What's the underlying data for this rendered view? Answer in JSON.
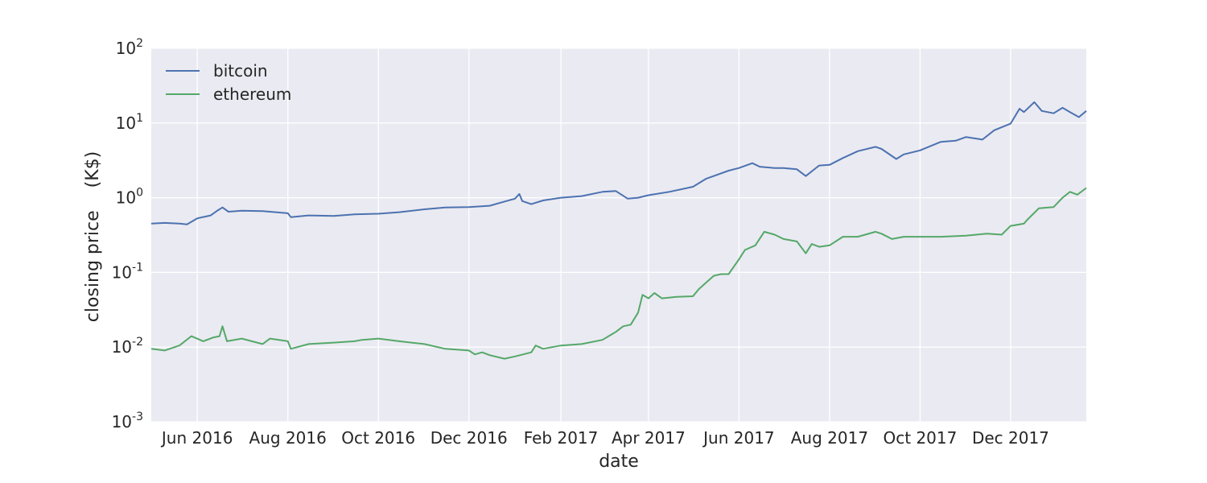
{
  "chart_data": {
    "type": "line",
    "xlabel": "date",
    "ylabel": "closing price    (K$)",
    "yscale": "log",
    "ylim": [
      0.001,
      100
    ],
    "xlim": [
      "2016-05-01",
      "2018-01-21"
    ],
    "grid": true,
    "legend_position": "top-left",
    "x_ticks": [
      {
        "date": "2016-06-01",
        "label": "Jun 2016"
      },
      {
        "date": "2016-08-01",
        "label": "Aug 2016"
      },
      {
        "date": "2016-10-01",
        "label": "Oct 2016"
      },
      {
        "date": "2016-12-01",
        "label": "Dec 2016"
      },
      {
        "date": "2017-02-01",
        "label": "Feb 2017"
      },
      {
        "date": "2017-04-01",
        "label": "Apr 2017"
      },
      {
        "date": "2017-06-01",
        "label": "Jun 2017"
      },
      {
        "date": "2017-08-01",
        "label": "Aug 2017"
      },
      {
        "date": "2017-10-01",
        "label": "Oct 2017"
      },
      {
        "date": "2017-12-01",
        "label": "Dec 2017"
      }
    ],
    "y_ticks": [
      {
        "value": 0.001,
        "base": "10",
        "exp": "-3"
      },
      {
        "value": 0.01,
        "base": "10",
        "exp": "-2"
      },
      {
        "value": 0.1,
        "base": "10",
        "exp": "-1"
      },
      {
        "value": 1,
        "base": "10",
        "exp": "0"
      },
      {
        "value": 10,
        "base": "10",
        "exp": "1"
      },
      {
        "value": 100,
        "base": "10",
        "exp": "2"
      }
    ],
    "series": [
      {
        "name": "bitcoin",
        "color": "#4c72b0",
        "x": [
          "2016-05-01",
          "2016-05-10",
          "2016-05-20",
          "2016-05-25",
          "2016-06-01",
          "2016-06-10",
          "2016-06-15",
          "2016-06-18",
          "2016-06-22",
          "2016-07-01",
          "2016-07-15",
          "2016-08-01",
          "2016-08-03",
          "2016-08-15",
          "2016-09-01",
          "2016-09-15",
          "2016-10-01",
          "2016-10-15",
          "2016-11-01",
          "2016-11-15",
          "2016-12-01",
          "2016-12-15",
          "2017-01-01",
          "2017-01-04",
          "2017-01-06",
          "2017-01-12",
          "2017-01-20",
          "2017-02-01",
          "2017-02-15",
          "2017-03-01",
          "2017-03-10",
          "2017-03-18",
          "2017-03-25",
          "2017-04-01",
          "2017-04-15",
          "2017-05-01",
          "2017-05-10",
          "2017-05-25",
          "2017-06-01",
          "2017-06-10",
          "2017-06-15",
          "2017-06-25",
          "2017-07-01",
          "2017-07-10",
          "2017-07-16",
          "2017-07-25",
          "2017-08-01",
          "2017-08-10",
          "2017-08-20",
          "2017-09-01",
          "2017-09-05",
          "2017-09-15",
          "2017-09-20",
          "2017-10-01",
          "2017-10-15",
          "2017-10-25",
          "2017-11-01",
          "2017-11-12",
          "2017-11-20",
          "2017-12-01",
          "2017-12-07",
          "2017-12-10",
          "2017-12-17",
          "2017-12-22",
          "2017-12-30",
          "2018-01-05",
          "2018-01-10",
          "2018-01-16",
          "2018-01-21"
        ],
        "values": [
          0.45,
          0.46,
          0.45,
          0.44,
          0.53,
          0.58,
          0.68,
          0.74,
          0.65,
          0.67,
          0.66,
          0.62,
          0.55,
          0.58,
          0.57,
          0.6,
          0.61,
          0.64,
          0.7,
          0.74,
          0.75,
          0.78,
          0.97,
          1.12,
          0.9,
          0.82,
          0.92,
          1.0,
          1.05,
          1.2,
          1.23,
          0.97,
          1.0,
          1.08,
          1.2,
          1.4,
          1.8,
          2.3,
          2.5,
          2.9,
          2.6,
          2.5,
          2.5,
          2.4,
          1.95,
          2.7,
          2.75,
          3.4,
          4.2,
          4.8,
          4.5,
          3.3,
          3.8,
          4.3,
          5.6,
          5.8,
          6.5,
          6.0,
          8.0,
          9.8,
          15.5,
          14.0,
          19.0,
          14.5,
          13.5,
          16.0,
          14.0,
          12.0,
          14.5
        ]
      },
      {
        "name": "ethereum",
        "color": "#55a868",
        "x": [
          "2016-05-01",
          "2016-05-10",
          "2016-05-20",
          "2016-05-28",
          "2016-06-05",
          "2016-06-12",
          "2016-06-16",
          "2016-06-18",
          "2016-06-21",
          "2016-07-01",
          "2016-07-15",
          "2016-07-20",
          "2016-08-01",
          "2016-08-03",
          "2016-08-15",
          "2016-09-01",
          "2016-09-15",
          "2016-09-20",
          "2016-10-01",
          "2016-10-15",
          "2016-11-01",
          "2016-11-15",
          "2016-12-01",
          "2016-12-05",
          "2016-12-10",
          "2016-12-15",
          "2016-12-25",
          "2017-01-01",
          "2017-01-12",
          "2017-01-15",
          "2017-01-20",
          "2017-02-01",
          "2017-02-15",
          "2017-03-01",
          "2017-03-10",
          "2017-03-15",
          "2017-03-20",
          "2017-03-25",
          "2017-03-28",
          "2017-04-01",
          "2017-04-05",
          "2017-04-10",
          "2017-04-20",
          "2017-05-01",
          "2017-05-05",
          "2017-05-15",
          "2017-05-20",
          "2017-05-25",
          "2017-06-01",
          "2017-06-05",
          "2017-06-12",
          "2017-06-18",
          "2017-06-25",
          "2017-07-01",
          "2017-07-10",
          "2017-07-16",
          "2017-07-20",
          "2017-07-25",
          "2017-08-01",
          "2017-08-10",
          "2017-08-20",
          "2017-09-01",
          "2017-09-05",
          "2017-09-12",
          "2017-09-20",
          "2017-10-01",
          "2017-10-15",
          "2017-11-01",
          "2017-11-15",
          "2017-11-25",
          "2017-12-01",
          "2017-12-10",
          "2017-12-12",
          "2017-12-20",
          "2017-12-30",
          "2018-01-05",
          "2018-01-10",
          "2018-01-15",
          "2018-01-21"
        ],
        "values": [
          0.0095,
          0.009,
          0.0105,
          0.014,
          0.012,
          0.0135,
          0.014,
          0.019,
          0.012,
          0.013,
          0.011,
          0.013,
          0.012,
          0.0095,
          0.011,
          0.0115,
          0.012,
          0.0125,
          0.013,
          0.012,
          0.011,
          0.0095,
          0.009,
          0.008,
          0.0085,
          0.0078,
          0.007,
          0.0075,
          0.0085,
          0.0105,
          0.0095,
          0.0105,
          0.011,
          0.0125,
          0.016,
          0.019,
          0.02,
          0.029,
          0.05,
          0.045,
          0.053,
          0.045,
          0.047,
          0.048,
          0.06,
          0.09,
          0.095,
          0.095,
          0.15,
          0.2,
          0.23,
          0.35,
          0.32,
          0.28,
          0.26,
          0.18,
          0.24,
          0.22,
          0.23,
          0.3,
          0.3,
          0.35,
          0.33,
          0.28,
          0.3,
          0.3,
          0.3,
          0.31,
          0.33,
          0.32,
          0.42,
          0.45,
          0.5,
          0.72,
          0.75,
          1.0,
          1.2,
          1.1,
          1.35
        ]
      }
    ]
  }
}
